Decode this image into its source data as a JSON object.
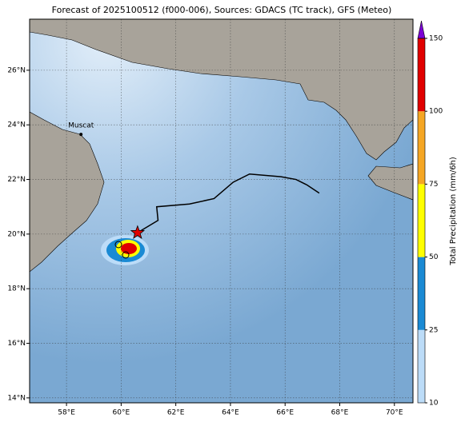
{
  "map": {
    "title": "Forecast of 2025100512 (f000-006), Sources: GDACS (TC track), GFS (Meteo)",
    "lonlim": [
      56.65,
      70.68
    ],
    "latlim": [
      13.82,
      27.87
    ],
    "lonticks": [
      {
        "value": 58,
        "label": "58°E"
      },
      {
        "value": 60,
        "label": "60°E"
      },
      {
        "value": 62,
        "label": "62°E"
      },
      {
        "value": 64,
        "label": "64°E"
      },
      {
        "value": 66,
        "label": "66°E"
      },
      {
        "value": 68,
        "label": "68°E"
      },
      {
        "value": 70,
        "label": "70°E"
      }
    ],
    "latticks": [
      {
        "value": 14,
        "label": "14°N"
      },
      {
        "value": 16,
        "label": "16°N"
      },
      {
        "value": 18,
        "label": "18°N"
      },
      {
        "value": 20,
        "label": "20°N"
      },
      {
        "value": 22,
        "label": "22°N"
      },
      {
        "value": 24,
        "label": "24°N"
      },
      {
        "value": 26,
        "label": "26°N"
      }
    ],
    "grid": true,
    "city": {
      "name": "Muscat",
      "lon": 58.53,
      "lat": 23.65
    },
    "track": {
      "lon": [
        67.25,
        66.8,
        66.4,
        65.85,
        64.7,
        64.1,
        63.4,
        62.5,
        61.3,
        61.35,
        60.6
      ],
      "lat": [
        21.5,
        21.8,
        22.0,
        22.1,
        22.2,
        21.9,
        21.3,
        21.1,
        21.0,
        20.5,
        20.05
      ],
      "color": "#000000",
      "marker_color": "#e00000"
    },
    "colorbar": {
      "label": "Total Precipitation (mm/6h)",
      "ticks": [
        10,
        25,
        50,
        75,
        100,
        150
      ],
      "colors": [
        "#bcdcf8",
        "#1a8ad4",
        "#ffff00",
        "#f5a623",
        "#e00000"
      ],
      "extend_color": "#7b00d4"
    }
  }
}
